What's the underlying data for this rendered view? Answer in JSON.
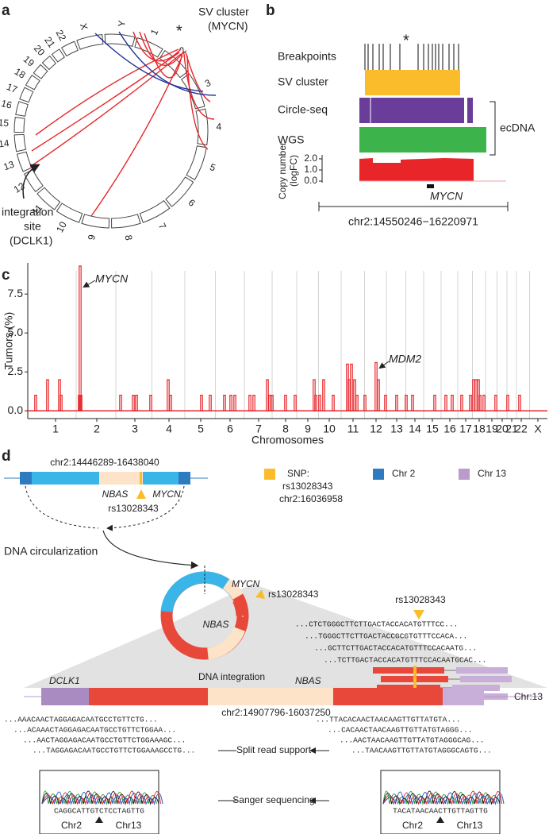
{
  "panel_a": {
    "label": "a",
    "chromosomes": [
      "1",
      "2",
      "3",
      "4",
      "5",
      "6",
      "7",
      "8",
      "9",
      "10",
      "11",
      "12",
      "13",
      "14",
      "15",
      "16",
      "17",
      "18",
      "19",
      "20",
      "21",
      "22",
      "X",
      "Y"
    ],
    "asterisk": "*",
    "sv_cluster": [
      "SV cluster",
      "(MYCN)"
    ],
    "integration": [
      "integration",
      "site",
      "(DCLK1)"
    ]
  },
  "panel_b": {
    "label": "b",
    "asterisk": "*",
    "tracks": [
      "Breakpoints",
      "SV cluster",
      "Circle-seq",
      "WGS"
    ],
    "copy_number": {
      "label": [
        "Copy number",
        "(logFC)"
      ],
      "yticks": [
        {
          "value": 0,
          "label": "0.0"
        },
        {
          "value": 1,
          "label": "1.0"
        },
        {
          "value": 2,
          "label": "2.0"
        }
      ]
    },
    "ecdna": "ecDNA",
    "gene": "MYCN",
    "region": "chr2:14550246−16220971"
  },
  "chart_data": {
    "type": "bar",
    "label": "c",
    "ylabel": "Tumors (%)",
    "xlabel": "Chromosomes",
    "color": "#e8262a",
    "xlim": [
      0,
      655
    ],
    "ylim": [
      -0.5,
      9.5
    ],
    "yticks": [
      {
        "value": 0,
        "label": "0.0"
      },
      {
        "value": 2.5,
        "label": "2.5"
      },
      {
        "value": 5,
        "label": "5.0"
      },
      {
        "value": 7.5,
        "label": "7.5"
      }
    ],
    "xticks": [
      {
        "value": 35,
        "label": "1"
      },
      {
        "value": 87,
        "label": "2"
      },
      {
        "value": 135,
        "label": "3"
      },
      {
        "value": 178,
        "label": "4"
      },
      {
        "value": 218,
        "label": "5"
      },
      {
        "value": 255,
        "label": "6"
      },
      {
        "value": 291,
        "label": "7"
      },
      {
        "value": 325,
        "label": "8"
      },
      {
        "value": 353,
        "label": "9"
      },
      {
        "value": 380,
        "label": "10"
      },
      {
        "value": 410,
        "label": "11"
      },
      {
        "value": 439,
        "label": "12"
      },
      {
        "value": 465,
        "label": "13"
      },
      {
        "value": 488,
        "label": "14"
      },
      {
        "value": 510,
        "label": "15"
      },
      {
        "value": 532,
        "label": "16"
      },
      {
        "value": 552,
        "label": "17"
      },
      {
        "value": 569,
        "label": "18"
      },
      {
        "value": 585,
        "label": "19"
      },
      {
        "value": 598,
        "label": "20"
      },
      {
        "value": 610,
        "label": "21"
      },
      {
        "value": 622,
        "label": "22"
      },
      {
        "value": 643,
        "label": "X"
      }
    ],
    "x": [
      10,
      25,
      40,
      42,
      65,
      66,
      67,
      117,
      133,
      137,
      155,
      177,
      180,
      219,
      230,
      248,
      256,
      261,
      280,
      285,
      302,
      305,
      308,
      325,
      337,
      361,
      363,
      368,
      373,
      385,
      403,
      405,
      408,
      412,
      415,
      425,
      439,
      442,
      451,
      465,
      477,
      485,
      513,
      527,
      535,
      547,
      558,
      562,
      565,
      568,
      570,
      575,
      590,
      605,
      620
    ],
    "values": [
      1,
      2,
      2,
      1,
      1,
      9.3,
      1,
      1,
      1,
      1,
      1,
      2,
      1,
      1,
      1,
      1,
      1,
      1,
      1,
      1,
      2,
      1,
      1,
      1,
      1,
      2,
      1,
      1,
      2,
      1,
      3,
      2,
      3,
      2,
      1,
      1,
      3.1,
      2,
      1,
      1,
      1,
      1,
      1,
      1,
      1,
      1,
      1,
      2,
      2,
      2,
      1,
      1,
      1,
      1,
      1
    ],
    "annotations": [
      "MYCN",
      "MDM2"
    ]
  },
  "panel_d": {
    "label": "d",
    "region": "chr2:14446289-16438040",
    "genes": [
      "NBAS",
      "MYCN"
    ],
    "snp": "rs13028343",
    "legend": {
      "snp": [
        "SNP:",
        "rs13028343",
        "chr2:16036958"
      ],
      "chr2": "Chr 2",
      "chr13": "Chr 13"
    },
    "circularization": "DNA circularization",
    "circle": {
      "mycn": "MYCN",
      "snp": "rs13028343",
      "nbas": "NBAS"
    },
    "integration": "DNA integration",
    "snp_right": "rs13028343",
    "snp_reads": [
      "...CTCTGGGCTTCTTGACTACCACATGTTTCC...",
      "...TGGGCTTCTTGACTACCGCGTGTTTCCACA...",
      "...GCTTCTTGACTACCACATGTTTCCACAATG...",
      "...TCTTGACTACCACATGTTTCCACAATGCAC..."
    ],
    "locus": {
      "dclk1": "DCLK1",
      "nbas": "NBAS",
      "region": "chr2:14907796-16037250",
      "chr": "Chr:13"
    },
    "left_reads": [
      "...AAACAACTAGGAGACAATGCCTGTTCTG...",
      "...ACAAACTAGGAGACAATGCCTGTTCTGGAA...",
      "...AACTAGGAGACAATGCCTGTTCTGGAAAGC...",
      "...TAGGAGACAATGCCTGTTCTGGAAAGCCTG..."
    ],
    "right_reads": [
      "...TTACACAACTAACAAGTTGTTATGTA...",
      "...CACAACTAACAAGTTGTTATGTAGGG...",
      "...AACTAACAAGTTGTTATGTAGGGCAG...",
      "...TAACAAGTTGTTATGTAGGGCAGTG..."
    ],
    "split": "Split read support",
    "sanger": "Sanger sequencing",
    "sanger_left": {
      "seq": "CAGGCATTGTCTCCTAGTTG",
      "a": "Chr2",
      "b": "Chr13"
    },
    "sanger_right": {
      "seq": "TACATAACAACTTGTTAGTTG",
      "a": "Chr2",
      "b": "Chr13"
    }
  }
}
